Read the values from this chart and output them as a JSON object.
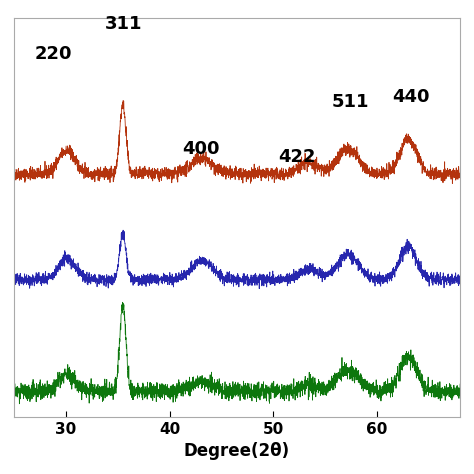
{
  "x_min": 25,
  "x_max": 68,
  "xticks": [
    30,
    40,
    50,
    60
  ],
  "xlabel": "Degree(2θ)",
  "xlabel_fontsize": 12,
  "tick_fontsize": 11,
  "background_color": "#ffffff",
  "peak_positions": [
    30.1,
    35.5,
    43.1,
    53.4,
    57.2,
    63.0
  ],
  "peak_widths": [
    0.8,
    0.3,
    1.0,
    0.9,
    1.0,
    0.8
  ],
  "colors": {
    "red": "#b02800",
    "blue": "#1a1aaa",
    "green": "#007000"
  },
  "noise_scale": 0.008,
  "seed": 42,
  "label_configs": [
    [
      "220",
      27.0,
      0.885,
      13
    ],
    [
      "311",
      33.8,
      0.96,
      13
    ],
    [
      "400",
      41.2,
      0.64,
      13
    ],
    [
      "422",
      50.5,
      0.62,
      13
    ],
    [
      "511",
      55.6,
      0.76,
      13
    ],
    [
      "440",
      61.5,
      0.775,
      13
    ]
  ]
}
